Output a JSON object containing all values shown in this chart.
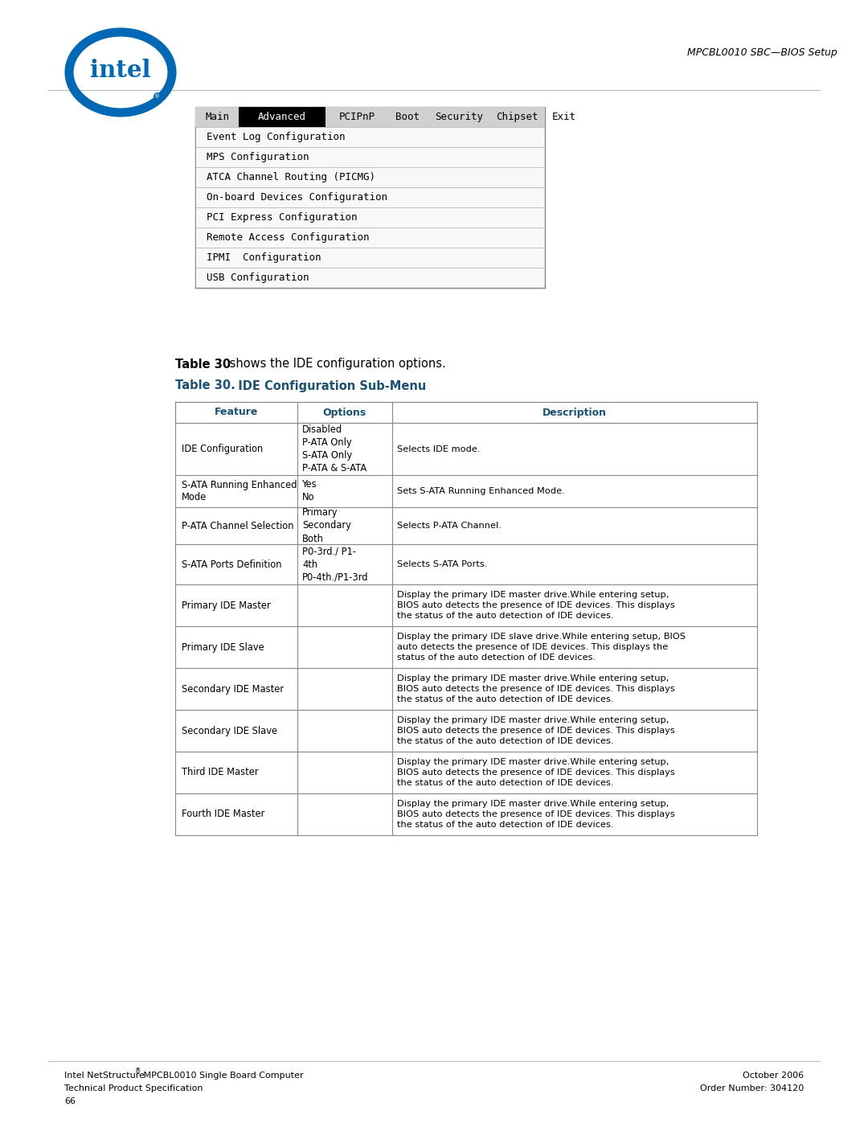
{
  "page_bg": "#ffffff",
  "header_right_text": "MPCBL0010 SBC—BIOS Setup",
  "bios_menu": {
    "items": [
      "Main",
      "Advanced",
      "PCIPnP",
      "Boot",
      "Security",
      "Chipset",
      "Exit"
    ],
    "active": "Advanced",
    "submenu": [
      "Event Log Configuration",
      "MPS Configuration",
      "ATCA Channel Routing (PICMG)",
      "On-board Devices Configuration",
      "PCI Express Configuration",
      "Remote Access Configuration",
      "IPMI  Configuration",
      "USB Configuration"
    ]
  },
  "table_intro_bold": "Table 30",
  "table_intro_rest": " shows the IDE configuration options.",
  "table_title_num": "Table 30.",
  "table_title_text": "  IDE Configuration Sub-Menu",
  "table_headers": [
    "Feature",
    "Options",
    "Description"
  ],
  "table_rows": [
    {
      "feature": "IDE Configuration",
      "options": "Disabled\nP-ATA Only\nS-ATA Only\nP-ATA & S-ATA",
      "description": "Selects IDE mode."
    },
    {
      "feature": "S-ATA Running Enhanced\nMode",
      "options": "Yes\nNo",
      "description": "Sets S-ATA Running Enhanced Mode."
    },
    {
      "feature": "P-ATA Channel Selection",
      "options": "Primary\nSecondary\nBoth",
      "description": "Selects P-ATA Channel."
    },
    {
      "feature": "S-ATA Ports Definition",
      "options": "P0-3rd./ P1-\n4th\nP0-4th./P1-3rd",
      "description": "Selects S-ATA Ports."
    },
    {
      "feature": "Primary IDE Master",
      "options": "",
      "description": "Display the primary IDE master drive.While entering setup,\nBIOS auto detects the presence of IDE devices. This displays\nthe status of the auto detection of IDE devices."
    },
    {
      "feature": "Primary IDE Slave",
      "options": "",
      "description": "Display the primary IDE slave drive.While entering setup, BIOS\nauto detects the presence of IDE devices. This displays the\nstatus of the auto detection of IDE devices."
    },
    {
      "feature": "Secondary IDE Master",
      "options": "",
      "description": "Display the primary IDE master drive.While entering setup,\nBIOS auto detects the presence of IDE devices. This displays\nthe status of the auto detection of IDE devices."
    },
    {
      "feature": "Secondary IDE Slave",
      "options": "",
      "description": "Display the primary IDE master drive.While entering setup,\nBIOS auto detects the presence of IDE devices. This displays\nthe status of the auto detection of IDE devices."
    },
    {
      "feature": "Third IDE Master",
      "options": "",
      "description": "Display the primary IDE master drive.While entering setup,\nBIOS auto detects the presence of IDE devices. This displays\nthe status of the auto detection of IDE devices."
    },
    {
      "feature": "Fourth IDE Master",
      "options": "",
      "description": "Display the primary IDE master drive.While entering setup,\nBIOS auto detects the presence of IDE devices. This displays\nthe status of the auto detection of IDE devices."
    }
  ],
  "footer_left": [
    "Intel NetStructure® MPCBL0010 Single Board Computer",
    "Technical Product Specification",
    "66"
  ],
  "footer_right": [
    "October 2006",
    "Order Number: 304120"
  ]
}
